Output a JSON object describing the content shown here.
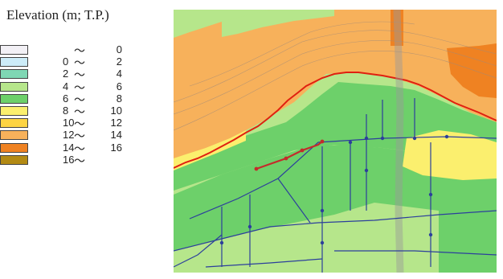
{
  "legend": {
    "title": "Elevation (m; T.P.)",
    "items": [
      {
        "from": "",
        "to": "0",
        "color": "#f2f0f5"
      },
      {
        "from": "0",
        "to": "2",
        "color": "#ccecf8"
      },
      {
        "from": "2",
        "to": "4",
        "color": "#7fd7b4"
      },
      {
        "from": "4",
        "to": "6",
        "color": "#b6e68b"
      },
      {
        "from": "6",
        "to": "8",
        "color": "#6dd06a"
      },
      {
        "from": "8",
        "to": "10",
        "color": "#fbef6e"
      },
      {
        "from": "10",
        "to": "12",
        "color": "#fdd443"
      },
      {
        "from": "12",
        "to": "14",
        "color": "#f7b15b"
      },
      {
        "from": "14",
        "to": "16",
        "color": "#ef8222"
      },
      {
        "from": "16",
        "to": "",
        "color": "#b38a14"
      }
    ],
    "tilde": "～"
  },
  "map": {
    "colors": {
      "elev_4_6": "#b6e68b",
      "elev_6_8": "#6dd06a",
      "elev_8_10": "#fbef6e",
      "elev_12_14": "#f7b15b",
      "elev_14_16": "#ef8222",
      "boundary": "#e02010",
      "network": "#2c3f9c",
      "highlight": "#c42b2b",
      "road": "#9a9a9a"
    }
  }
}
